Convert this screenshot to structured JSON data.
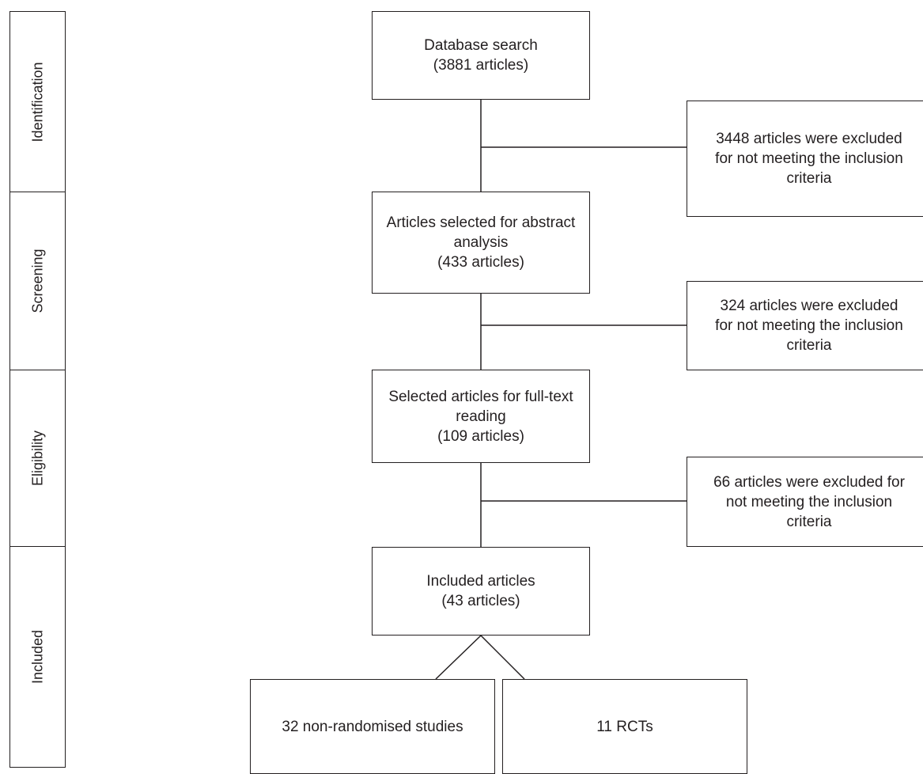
{
  "stages": [
    "Identification",
    "Screening",
    "Eligibility",
    "Included"
  ],
  "flow": {
    "database_search": "Database search\n(3881 articles)",
    "abstract_analysis": "Articles selected for abstract\nanalysis\n(433 articles)",
    "full_text": "Selected articles for full-text\nreading\n(109 articles)",
    "included": "Included articles\n(43 articles)",
    "non_randomised": "32 non-randomised studies",
    "rcts": "11 RCTs"
  },
  "exclusions": [
    "3448 articles were excluded\nfor not meeting the inclusion\ncriteria",
    "324 articles were excluded\nfor not meeting the inclusion\ncriteria",
    "66 articles were excluded for\nnot meeting the inclusion\ncriteria"
  ]
}
